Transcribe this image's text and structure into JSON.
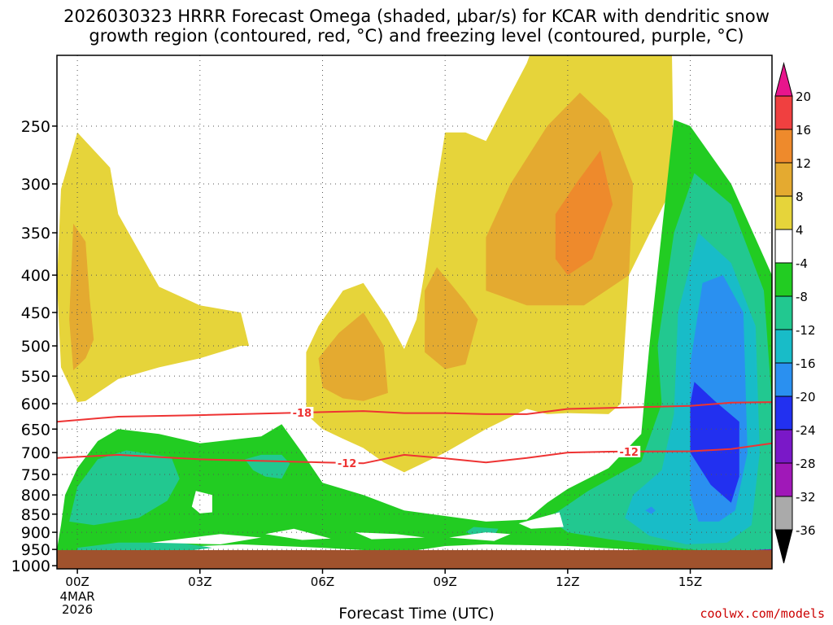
{
  "title_line1": "2026030323 HRRR Forecast Omega (shaded, μbar/s) for KCAR with dendritic snow",
  "title_line2": "growth region (contoured, red, °C) and freezing level (contoured, purple, °C)",
  "credit": "coolwx.com/models",
  "chart_data": {
    "type": "contour",
    "xlabel": "Forecast Time (UTC)",
    "ylabel": "",
    "x_ticks": [
      "00Z",
      "03Z",
      "06Z",
      "09Z",
      "12Z",
      "15Z"
    ],
    "x_date_label": [
      "4MAR",
      "2026"
    ],
    "xlim": [
      -0.5,
      17
    ],
    "y_ticks": [
      250,
      300,
      350,
      400,
      450,
      500,
      550,
      600,
      650,
      700,
      750,
      800,
      850,
      900,
      950,
      1000
    ],
    "ylim": [
      1010,
      200
    ],
    "grid": true,
    "colorbar": {
      "levels": [
        "20",
        "16",
        "12",
        "8",
        "4",
        "-4",
        "-8",
        "-12",
        "-16",
        "-20",
        "-24",
        "-28",
        "-32",
        "-36"
      ],
      "colors": [
        "#e8158c",
        "#f04040",
        "#ee8a2c",
        "#e4aa30",
        "#e6d43a",
        "#ffffff",
        "#22cc22",
        "#22c890",
        "#18bcc8",
        "#2a90f0",
        "#2230f0",
        "#7a18c8",
        "#a018b8",
        "#aaaaaa",
        "#000000"
      ]
    },
    "isotherms": [
      {
        "label": "-18",
        "color": "#ee3333",
        "points": [
          [
            -0.5,
            635
          ],
          [
            1,
            625
          ],
          [
            3,
            622
          ],
          [
            5,
            618
          ],
          [
            7,
            614
          ],
          [
            8,
            618
          ],
          [
            9,
            618
          ],
          [
            10,
            620
          ],
          [
            11,
            620
          ],
          [
            12,
            610
          ],
          [
            13,
            608
          ],
          [
            15,
            604
          ],
          [
            16,
            598
          ],
          [
            17,
            597
          ]
        ]
      },
      {
        "label": "-12",
        "color": "#ee3333",
        "points": [
          [
            -0.5,
            712
          ],
          [
            1,
            705
          ],
          [
            3,
            715
          ],
          [
            6,
            722
          ],
          [
            7,
            724
          ],
          [
            8,
            705
          ],
          [
            9,
            713
          ],
          [
            10,
            722
          ],
          [
            11,
            712
          ],
          [
            12,
            700
          ],
          [
            13,
            698
          ],
          [
            15,
            697
          ],
          [
            16,
            692
          ],
          [
            17,
            680
          ]
        ]
      }
    ],
    "freezing_level": [
      {
        "color": "#8a18b0",
        "points": [
          [
            -0.5,
            955
          ],
          [
            0.2,
            963
          ],
          [
            0.4,
            975
          ]
        ]
      },
      {
        "color": "#8a18b0",
        "points": [
          [
            14.8,
            972
          ],
          [
            15.3,
            965
          ],
          [
            16,
            958
          ],
          [
            17,
            952
          ]
        ]
      }
    ],
    "omega_regions": [
      {
        "level": "4",
        "color": "#e6d43a",
        "points": [
          [
            0,
            597
          ],
          [
            -0.4,
            535
          ],
          [
            -0.5,
            410
          ],
          [
            -0.4,
            305
          ],
          [
            0,
            255
          ],
          [
            0.8,
            285
          ],
          [
            1,
            330
          ],
          [
            2,
            415
          ],
          [
            3,
            440
          ],
          [
            4,
            450
          ],
          [
            4.2,
            500
          ],
          [
            4,
            500
          ],
          [
            3,
            520
          ],
          [
            2,
            535
          ],
          [
            1,
            555
          ],
          [
            0.2,
            595
          ]
        ]
      },
      {
        "level": "4",
        "color": "#e6d43a",
        "points": [
          [
            6,
            650
          ],
          [
            5.6,
            620
          ],
          [
            5.6,
            510
          ],
          [
            5.9,
            470
          ],
          [
            6.5,
            420
          ],
          [
            7,
            410
          ],
          [
            7.6,
            460
          ],
          [
            8,
            505
          ],
          [
            8.3,
            460
          ],
          [
            8.5,
            395
          ],
          [
            8.8,
            300
          ],
          [
            9,
            255
          ],
          [
            9.5,
            255
          ],
          [
            10,
            262
          ],
          [
            11,
            205
          ],
          [
            11.8,
            155
          ],
          [
            12.4,
            130
          ],
          [
            13,
            100
          ],
          [
            14,
            95
          ],
          [
            14.5,
            130
          ],
          [
            14.6,
            300
          ],
          [
            13.5,
            400
          ],
          [
            13.3,
            600
          ],
          [
            13,
            620
          ],
          [
            12,
            618
          ],
          [
            11.5,
            620
          ],
          [
            11,
            610
          ],
          [
            10,
            650
          ],
          [
            9,
            700
          ],
          [
            8,
            745
          ],
          [
            7.5,
            722
          ],
          [
            7,
            690
          ],
          [
            6.5,
            670
          ]
        ]
      },
      {
        "level": "8",
        "color": "#e4aa30",
        "points": [
          [
            -0.1,
            540
          ],
          [
            -0.2,
            460
          ],
          [
            -0.1,
            340
          ],
          [
            0.2,
            360
          ],
          [
            0.3,
            430
          ],
          [
            0.4,
            490
          ],
          [
            0.2,
            520
          ]
        ]
      },
      {
        "level": "8",
        "color": "#e4aa30",
        "points": [
          [
            6.5,
            590
          ],
          [
            6,
            570
          ],
          [
            5.9,
            520
          ],
          [
            6.4,
            480
          ],
          [
            7,
            450
          ],
          [
            7.5,
            500
          ],
          [
            7.6,
            580
          ],
          [
            7,
            595
          ]
        ]
      },
      {
        "level": "8",
        "color": "#e4aa30",
        "points": [
          [
            9,
            538
          ],
          [
            8.5,
            510
          ],
          [
            8.5,
            420
          ],
          [
            8.8,
            390
          ],
          [
            9.5,
            435
          ],
          [
            9.8,
            460
          ],
          [
            9.5,
            530
          ]
        ]
      },
      {
        "level": "8",
        "color": "#e4aa30",
        "points": [
          [
            11,
            440
          ],
          [
            10,
            420
          ],
          [
            10,
            355
          ],
          [
            10.6,
            300
          ],
          [
            11.5,
            250
          ],
          [
            12.3,
            225
          ],
          [
            13,
            245
          ],
          [
            13.6,
            300
          ],
          [
            13.5,
            400
          ],
          [
            12.4,
            440
          ]
        ]
      },
      {
        "level": "12",
        "color": "#ee8a2c",
        "points": [
          [
            12,
            400
          ],
          [
            11.7,
            380
          ],
          [
            11.7,
            330
          ],
          [
            12.2,
            300
          ],
          [
            12.8,
            270
          ],
          [
            13.1,
            320
          ],
          [
            12.6,
            380
          ]
        ]
      },
      {
        "level": "-4",
        "color": "#22cc22",
        "points": [
          [
            -0.5,
            950
          ],
          [
            -0.4,
            880
          ],
          [
            -0.3,
            800
          ],
          [
            0,
            735
          ],
          [
            0.5,
            675
          ],
          [
            1,
            650
          ],
          [
            2,
            660
          ],
          [
            3,
            680
          ],
          [
            4.5,
            665
          ],
          [
            5,
            640
          ],
          [
            5.5,
            700
          ],
          [
            6,
            770
          ],
          [
            7,
            800
          ],
          [
            8,
            840
          ],
          [
            10,
            870
          ],
          [
            11,
            865
          ],
          [
            11.5,
            820
          ],
          [
            12,
            785
          ],
          [
            13,
            735
          ],
          [
            13.8,
            660
          ],
          [
            14,
            500
          ],
          [
            14.3,
            350
          ],
          [
            14.6,
            245
          ],
          [
            15,
            250
          ],
          [
            16,
            300
          ],
          [
            17,
            400
          ],
          [
            17,
            985
          ],
          [
            16,
            980
          ],
          [
            15,
            960
          ],
          [
            12,
            940
          ],
          [
            10,
            935
          ],
          [
            9,
            940
          ],
          [
            8,
            958
          ],
          [
            7,
            952
          ],
          [
            6,
            945
          ],
          [
            4,
            935
          ],
          [
            3,
            940
          ],
          [
            1.5,
            950
          ],
          [
            0.3,
            990
          ],
          [
            -0.2,
            990
          ]
        ]
      },
      {
        "level": "-8",
        "color": "#22c890",
        "points": [
          [
            -0.2,
            870
          ],
          [
            0,
            780
          ],
          [
            0.5,
            715
          ],
          [
            1.2,
            695
          ],
          [
            2.3,
            710
          ],
          [
            2.5,
            760
          ],
          [
            2.2,
            815
          ],
          [
            1.5,
            860
          ],
          [
            0.4,
            880
          ]
        ]
      },
      {
        "level": "-8",
        "color": "#22c890",
        "points": [
          [
            4.3,
            740
          ],
          [
            4.1,
            715
          ],
          [
            4.5,
            705
          ],
          [
            5,
            705
          ],
          [
            5.2,
            725
          ],
          [
            5,
            760
          ],
          [
            4.6,
            755
          ]
        ]
      },
      {
        "level": "-8",
        "color": "#22c890",
        "points": [
          [
            0,
            960
          ],
          [
            0,
            945
          ],
          [
            1,
            930
          ],
          [
            2.5,
            930
          ],
          [
            3.3,
            945
          ],
          [
            2,
            965
          ],
          [
            1,
            972
          ]
        ]
      },
      {
        "level": "-8",
        "color": "#22c890",
        "points": [
          [
            9.5,
            900
          ],
          [
            9.7,
            885
          ],
          [
            10.3,
            890
          ],
          [
            10.2,
            912
          ],
          [
            9.8,
            912
          ]
        ]
      },
      {
        "level": "-8",
        "color": "#22c890",
        "points": [
          [
            12,
            900
          ],
          [
            11.5,
            860
          ],
          [
            11.8,
            840
          ],
          [
            12.5,
            790
          ],
          [
            13.8,
            720
          ],
          [
            14.3,
            600
          ],
          [
            14.2,
            500
          ],
          [
            14.6,
            350
          ],
          [
            15.1,
            290
          ],
          [
            16,
            320
          ],
          [
            16.8,
            420
          ],
          [
            17,
            600
          ],
          [
            17,
            960
          ],
          [
            16,
            960
          ],
          [
            15,
            950
          ],
          [
            14,
            935
          ],
          [
            13,
            920
          ]
        ]
      },
      {
        "level": "-12",
        "color": "#18bcc8",
        "points": [
          [
            13.4,
            860
          ],
          [
            13.6,
            800
          ],
          [
            14.3,
            740
          ],
          [
            14.6,
            620
          ],
          [
            14.7,
            450
          ],
          [
            15.2,
            350
          ],
          [
            16,
            385
          ],
          [
            16.6,
            470
          ],
          [
            16.7,
            700
          ],
          [
            16.5,
            880
          ],
          [
            15.9,
            930
          ],
          [
            14.9,
            935
          ],
          [
            14,
            910
          ]
        ]
      },
      {
        "level": "-16",
        "color": "#2a90f0",
        "points": [
          [
            15.2,
            870
          ],
          [
            15,
            800
          ],
          [
            15,
            530
          ],
          [
            15.3,
            410
          ],
          [
            15.8,
            400
          ],
          [
            16.3,
            450
          ],
          [
            16.4,
            700
          ],
          [
            16.1,
            840
          ],
          [
            15.7,
            870
          ]
        ]
      },
      {
        "level": "-16",
        "color": "#2a90f0",
        "points": [
          [
            14.05,
            850
          ],
          [
            13.9,
            840
          ],
          [
            14.05,
            830
          ],
          [
            14.15,
            840
          ]
        ]
      },
      {
        "level": "-20",
        "color": "#2230f0",
        "points": [
          [
            15,
            600
          ],
          [
            15.1,
            560
          ],
          [
            15.6,
            595
          ],
          [
            16.2,
            635
          ],
          [
            16.2,
            755
          ],
          [
            16,
            820
          ],
          [
            15.5,
            775
          ],
          [
            15,
            700
          ]
        ]
      }
    ],
    "white_holes": [
      {
        "points": [
          [
            2.8,
            830
          ],
          [
            2.9,
            790
          ],
          [
            3.3,
            800
          ],
          [
            3.3,
            845
          ],
          [
            3,
            848
          ]
        ]
      },
      {
        "points": [
          [
            1.8,
            930
          ],
          [
            3.5,
            905
          ],
          [
            4.5,
            915
          ],
          [
            3.5,
            935
          ]
        ]
      },
      {
        "points": [
          [
            4.6,
            905
          ],
          [
            5.3,
            890
          ],
          [
            6.2,
            918
          ],
          [
            5.5,
            922
          ]
        ]
      },
      {
        "points": [
          [
            6.8,
            900
          ],
          [
            7.8,
            905
          ],
          [
            8.5,
            915
          ],
          [
            7.2,
            920
          ]
        ]
      },
      {
        "points": [
          [
            9.1,
            915
          ],
          [
            10,
            900
          ],
          [
            10.6,
            905
          ],
          [
            10.2,
            925
          ]
        ]
      },
      {
        "points": [
          [
            10.8,
            875
          ],
          [
            11.8,
            845
          ],
          [
            11.9,
            885
          ],
          [
            11.1,
            890
          ]
        ]
      }
    ]
  }
}
